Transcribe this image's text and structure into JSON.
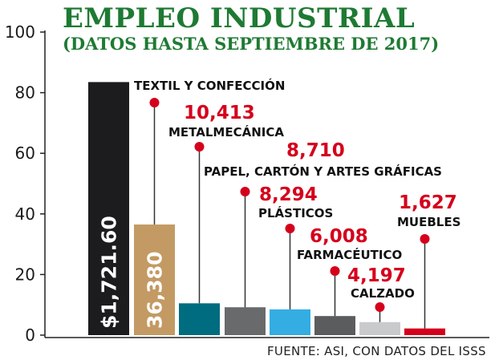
{
  "title": "EMPLEO INDUSTRIAL",
  "subtitle": "(DATOS HASTA SEPTIEMBRE DE 2017)",
  "source": "FUENTE: ASI, CON DATOS DEL ISSS",
  "colors": {
    "title": "#1e7a33",
    "value_label": "#d5001c",
    "marker": "#d5001c",
    "stem": "#333333"
  },
  "chart_data": {
    "type": "bar",
    "title": "EMPLEO INDUSTRIAL",
    "subtitle": "(DATOS HASTA SEPTIEMBRE DE 2017)",
    "xlabel": "",
    "ylabel": "",
    "ylim": [
      0,
      100
    ],
    "yticks": [
      0,
      20,
      40,
      60,
      80,
      100
    ],
    "grid": false,
    "legend": "none",
    "bars": [
      {
        "value": 83.5,
        "color": "#1c1b1d",
        "inbar_label": "$1,721.60"
      },
      {
        "value": 36.5,
        "color": "#c39a63",
        "inbar_label": "36,380"
      },
      {
        "value": 10.5,
        "color": "#006c80"
      },
      {
        "value": 9.2,
        "color": "#696a6c"
      },
      {
        "value": 8.5,
        "color": "#33ade2"
      },
      {
        "value": 6.3,
        "color": "#5b5c5e"
      },
      {
        "value": 4.3,
        "color": "#c9cacb"
      },
      {
        "value": 2.2,
        "color": "#d5001c"
      }
    ],
    "callouts": [
      {
        "bar": 1,
        "category": "TEXTIL Y CONFECCIÓN",
        "value_label": ""
      },
      {
        "bar": 2,
        "category": "METALMECÁNICA",
        "value_label": "10,413"
      },
      {
        "bar": 3,
        "category": "PAPEL, CARTÓN Y ARTES GRÁFICAS",
        "value_label": "8,710"
      },
      {
        "bar": 4,
        "category": "PLÁSTICOS",
        "value_label": "8,294"
      },
      {
        "bar": 5,
        "category": "FARMACÉUTICO",
        "value_label": "6,008"
      },
      {
        "bar": 6,
        "category": "CALZADO",
        "value_label": "4,197"
      },
      {
        "bar": 7,
        "category": "MUEBLES",
        "value_label": "1,627"
      }
    ]
  }
}
